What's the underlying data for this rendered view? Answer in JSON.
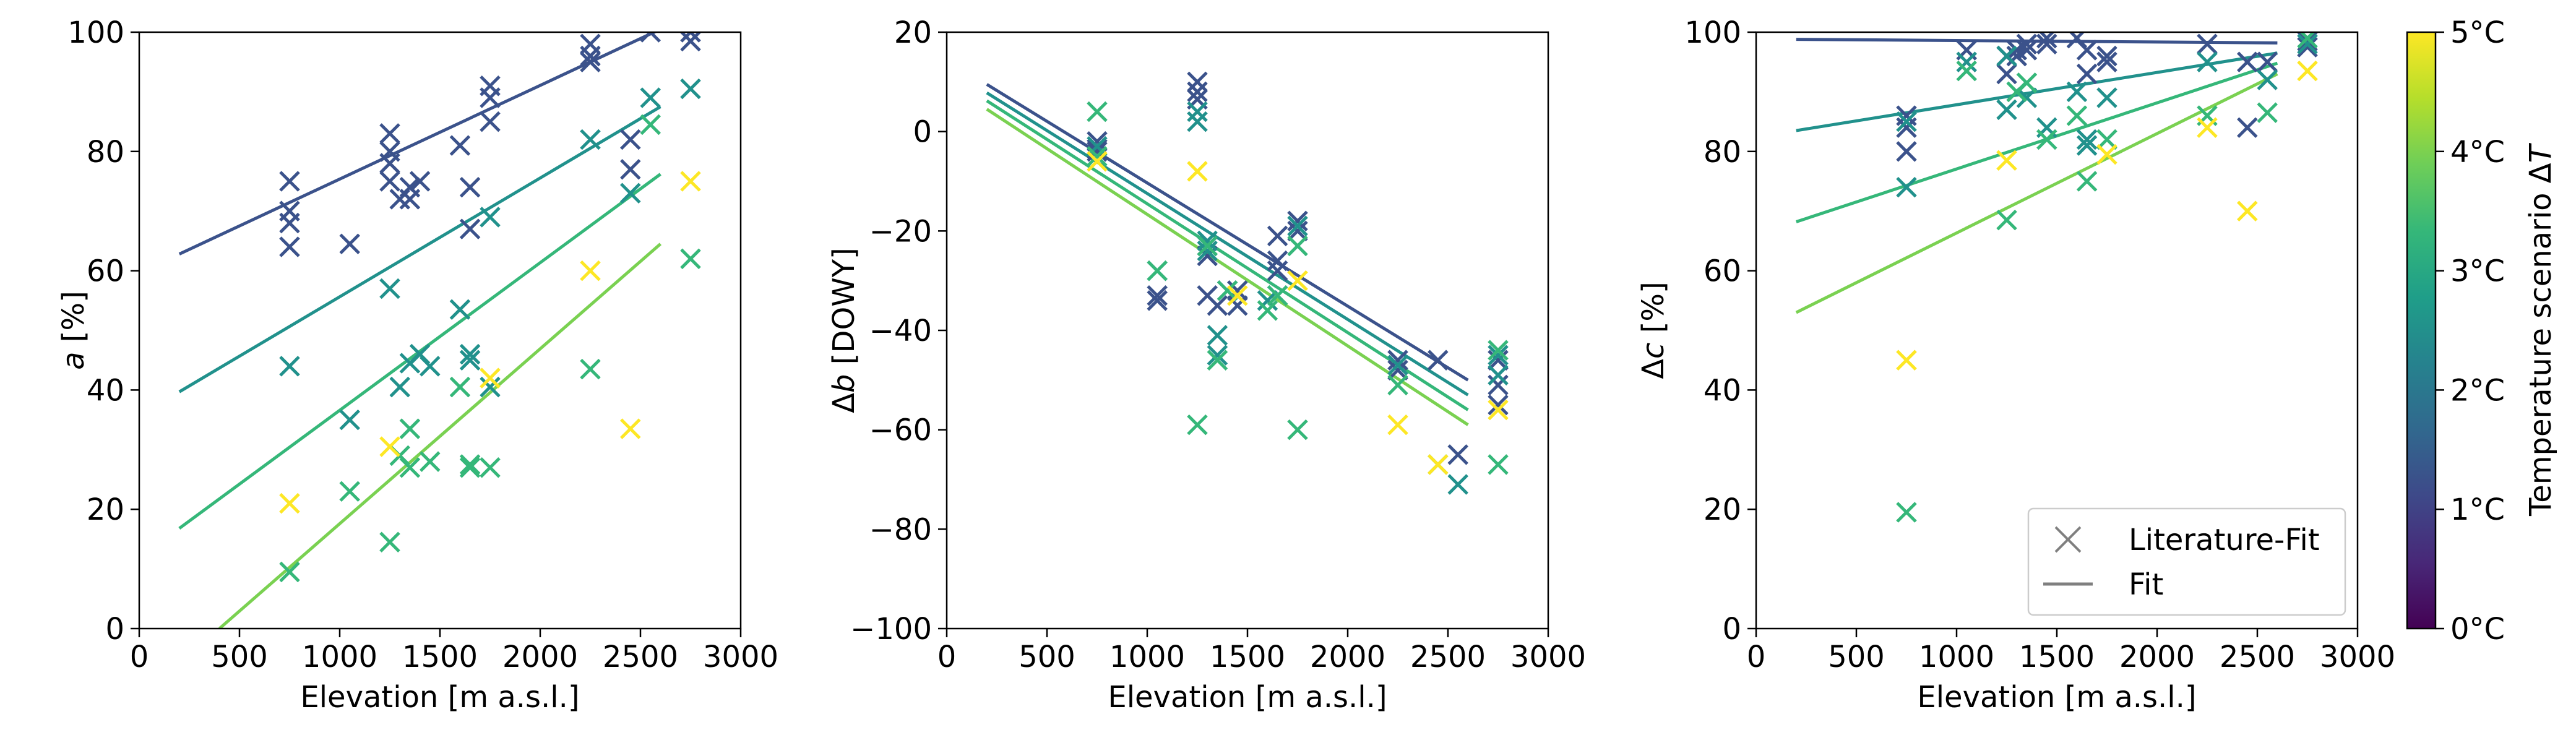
{
  "chart_data": [
    {
      "type": "scatter",
      "xlabel": "Elevation [m a.s.l.]",
      "ylabel": "a [%]",
      "ylabel_italic": "a",
      "ylabel_rest": " [%]",
      "xlim": [
        0,
        3000
      ],
      "ylim": [
        0,
        100
      ],
      "xticks": [
        0,
        500,
        1000,
        1500,
        2000,
        2500,
        3000
      ],
      "yticks": [
        0,
        20,
        40,
        60,
        80,
        100
      ],
      "grid": false,
      "series": [
        {
          "dT": 1,
          "color": "#3b528b",
          "fit": [
            [
              200,
              62.8
            ],
            [
              2600,
              100.5
            ]
          ],
          "points": [
            [
              750,
              75
            ],
            [
              750,
              70
            ],
            [
              750,
              68
            ],
            [
              750,
              64
            ],
            [
              1050,
              64.5
            ],
            [
              1250,
              83
            ],
            [
              1250,
              80
            ],
            [
              1250,
              78
            ],
            [
              1250,
              75
            ],
            [
              1300,
              72
            ],
            [
              1350,
              74
            ],
            [
              1350,
              72
            ],
            [
              1400,
              75
            ],
            [
              1600,
              81
            ],
            [
              1650,
              74
            ],
            [
              1650,
              67
            ],
            [
              1750,
              91
            ],
            [
              1750,
              89
            ],
            [
              1750,
              85
            ],
            [
              2250,
              98
            ],
            [
              2250,
              96
            ],
            [
              2250,
              95
            ],
            [
              2450,
              82
            ],
            [
              2450,
              77
            ],
            [
              2550,
              100
            ],
            [
              2750,
              100
            ],
            [
              2750,
              98.5
            ]
          ]
        },
        {
          "dT": 2,
          "color": "#21918c",
          "fit": [
            [
              200,
              39.7
            ],
            [
              2600,
              87.5
            ]
          ],
          "points": [
            [
              750,
              44
            ],
            [
              1050,
              35
            ],
            [
              1250,
              57
            ],
            [
              1300,
              40.5
            ],
            [
              1350,
              44.5
            ],
            [
              1400,
              46
            ],
            [
              1450,
              44
            ],
            [
              1600,
              53.5
            ],
            [
              1650,
              46
            ],
            [
              1650,
              45
            ],
            [
              1750,
              69
            ],
            [
              1750,
              40.5
            ],
            [
              2250,
              82
            ],
            [
              2450,
              73
            ],
            [
              2550,
              89
            ],
            [
              2750,
              90.5
            ]
          ]
        },
        {
          "dT": 3,
          "color": "#35b779",
          "fit": [
            [
              200,
              16.8
            ],
            [
              2600,
              76.2
            ]
          ],
          "points": [
            [
              750,
              9.5
            ],
            [
              1050,
              23
            ],
            [
              1250,
              14.5
            ],
            [
              1300,
              29
            ],
            [
              1350,
              33.5
            ],
            [
              1350,
              27
            ],
            [
              1450,
              28
            ],
            [
              1600,
              40.5
            ],
            [
              1650,
              27.5
            ],
            [
              1650,
              27
            ],
            [
              1750,
              27
            ],
            [
              2250,
              43.5
            ],
            [
              2550,
              84.5
            ],
            [
              2750,
              62
            ]
          ]
        },
        {
          "dT": 4,
          "color": "#7ad151",
          "fit": [
            [
              400,
              0
            ],
            [
              2600,
              64.5
            ]
          ],
          "points": []
        },
        {
          "dT": 5,
          "color": "#fde725",
          "fit": null,
          "points": [
            [
              750,
              21
            ],
            [
              1250,
              30.5
            ],
            [
              1750,
              42
            ],
            [
              2250,
              60
            ],
            [
              2450,
              33.5
            ],
            [
              2750,
              75
            ]
          ]
        }
      ]
    },
    {
      "type": "scatter",
      "xlabel": "Elevation [m a.s.l.]",
      "ylabel": "Δb [DOWY]",
      "ylabel_prefix": "Δ",
      "ylabel_italic": "b",
      "ylabel_rest": " [DOWY]",
      "xlim": [
        0,
        3000
      ],
      "ylim": [
        -100,
        20
      ],
      "xticks": [
        0,
        500,
        1000,
        1500,
        2000,
        2500,
        3000
      ],
      "yticks": [
        -100,
        -80,
        -60,
        -40,
        -20,
        0,
        20
      ],
      "grid": false,
      "series": [
        {
          "dT": 1,
          "color": "#3b528b",
          "fit": [
            [
              200,
              9.5
            ],
            [
              2600,
              -50
            ]
          ],
          "points": [
            [
              750,
              -2
            ],
            [
              750,
              -3.5
            ],
            [
              750,
              -4
            ],
            [
              1050,
              -33
            ],
            [
              1050,
              -34
            ],
            [
              1250,
              10
            ],
            [
              1250,
              8
            ],
            [
              1250,
              6.5
            ],
            [
              1300,
              -23
            ],
            [
              1300,
              -25
            ],
            [
              1300,
              -33
            ],
            [
              1350,
              -35
            ],
            [
              1400,
              -32
            ],
            [
              1450,
              -35
            ],
            [
              1450,
              -32
            ],
            [
              1650,
              -21
            ],
            [
              1650,
              -26
            ],
            [
              1650,
              -28
            ],
            [
              1750,
              -18
            ],
            [
              1750,
              -20
            ],
            [
              2250,
              -46
            ],
            [
              2250,
              -48
            ],
            [
              2450,
              -46
            ],
            [
              2550,
              -65
            ],
            [
              2750,
              -46
            ],
            [
              2750,
              -51
            ],
            [
              2750,
              -55
            ]
          ]
        },
        {
          "dT": 2,
          "color": "#21918c",
          "fit": [
            [
              200,
              7.8
            ],
            [
              2600,
              -53
            ]
          ],
          "points": [
            [
              750,
              -3
            ],
            [
              1050,
              -28
            ],
            [
              1250,
              4
            ],
            [
              1250,
              2
            ],
            [
              1300,
              -22
            ],
            [
              1300,
              -24
            ],
            [
              1350,
              -41
            ],
            [
              1350,
              -45
            ],
            [
              1600,
              -34
            ],
            [
              1650,
              -33
            ],
            [
              1750,
              -19
            ],
            [
              2250,
              -47
            ],
            [
              2550,
              -71
            ],
            [
              2750,
              -45
            ],
            [
              2750,
              -49
            ]
          ]
        },
        {
          "dT": 3,
          "color": "#35b779",
          "fit": [
            [
              200,
              6.2
            ],
            [
              2600,
              -56
            ]
          ],
          "points": [
            [
              750,
              4
            ],
            [
              750,
              -5
            ],
            [
              1050,
              -28
            ],
            [
              1250,
              -59
            ],
            [
              1300,
              -23
            ],
            [
              1350,
              -46
            ],
            [
              1400,
              -32
            ],
            [
              1600,
              -36
            ],
            [
              1650,
              -33
            ],
            [
              1750,
              -23
            ],
            [
              1750,
              -60
            ],
            [
              2250,
              -51
            ],
            [
              2450,
              -67
            ],
            [
              2750,
              -44
            ],
            [
              2750,
              -67
            ]
          ]
        },
        {
          "dT": 4,
          "color": "#7ad151",
          "fit": [
            [
              200,
              4.5
            ],
            [
              2600,
              -59
            ]
          ],
          "points": []
        },
        {
          "dT": 5,
          "color": "#fde725",
          "fit": null,
          "points": [
            [
              750,
              -6
            ],
            [
              1250,
              -8
            ],
            [
              1450,
              -33
            ],
            [
              1750,
              -30
            ],
            [
              2250,
              -59
            ],
            [
              2450,
              -67
            ],
            [
              2750,
              -56
            ]
          ]
        }
      ]
    },
    {
      "type": "scatter",
      "xlabel": "Elevation [m a.s.l.]",
      "ylabel": "Δc [%]",
      "ylabel_prefix": "Δ",
      "ylabel_italic": "c",
      "ylabel_rest": " [%]",
      "xlim": [
        0,
        3000
      ],
      "ylim": [
        0,
        100
      ],
      "xticks": [
        0,
        500,
        1000,
        1500,
        2000,
        2500,
        3000
      ],
      "yticks": [
        0,
        20,
        40,
        60,
        80,
        100
      ],
      "grid": false,
      "legend": {
        "placement": "lower right",
        "entries": [
          "Literature-Fit",
          "Fit"
        ]
      },
      "series": [
        {
          "dT": 1,
          "color": "#3b528b",
          "fit": [
            [
              200,
              98.8
            ],
            [
              2600,
              98.2
            ]
          ],
          "points": [
            [
              750,
              86
            ],
            [
              750,
              84
            ],
            [
              750,
              80
            ],
            [
              1050,
              97
            ],
            [
              1250,
              96
            ],
            [
              1250,
              93
            ],
            [
              1300,
              97
            ],
            [
              1300,
              96
            ],
            [
              1350,
              98
            ],
            [
              1350,
              97
            ],
            [
              1450,
              98
            ],
            [
              1450,
              99
            ],
            [
              1600,
              99
            ],
            [
              1650,
              97
            ],
            [
              1650,
              93
            ],
            [
              1750,
              96
            ],
            [
              1750,
              95
            ],
            [
              2250,
              98
            ],
            [
              2450,
              95
            ],
            [
              2450,
              84
            ],
            [
              2550,
              95
            ],
            [
              2750,
              98.5
            ],
            [
              2750,
              97.5
            ]
          ]
        },
        {
          "dT": 2,
          "color": "#21918c",
          "fit": [
            [
              200,
              83.5
            ],
            [
              2600,
              96.5
            ]
          ],
          "points": [
            [
              750,
              85
            ],
            [
              750,
              74
            ],
            [
              1050,
              95
            ],
            [
              1250,
              96
            ],
            [
              1250,
              87
            ],
            [
              1300,
              90
            ],
            [
              1350,
              89
            ],
            [
              1450,
              84
            ],
            [
              1600,
              90
            ],
            [
              1650,
              82
            ],
            [
              1650,
              81
            ],
            [
              1750,
              89
            ],
            [
              2250,
              95
            ],
            [
              2550,
              92
            ],
            [
              2750,
              98
            ]
          ]
        },
        {
          "dT": 3,
          "color": "#35b779",
          "fit": [
            [
              200,
              68.2
            ],
            [
              2600,
              94.8
            ]
          ],
          "points": [
            [
              750,
              19.5
            ],
            [
              1050,
              93.5
            ],
            [
              1250,
              68.5
            ],
            [
              1300,
              90
            ],
            [
              1350,
              91.5
            ],
            [
              1450,
              82
            ],
            [
              1600,
              86
            ],
            [
              1650,
              75
            ],
            [
              1750,
              82
            ],
            [
              2250,
              86
            ],
            [
              2550,
              86.5
            ],
            [
              2750,
              99
            ]
          ]
        },
        {
          "dT": 4,
          "color": "#7ad151",
          "fit": [
            [
              200,
              53
            ],
            [
              2600,
              93
            ]
          ],
          "points": []
        },
        {
          "dT": 5,
          "color": "#fde725",
          "fit": null,
          "points": [
            [
              750,
              45
            ],
            [
              1250,
              78.5
            ],
            [
              1750,
              79.5
            ],
            [
              2250,
              84
            ],
            [
              2450,
              70
            ],
            [
              2750,
              93.5
            ]
          ]
        }
      ]
    }
  ],
  "colorbar": {
    "label": "Temperature scenario ΔT",
    "label_prefix": "Temperature scenario Δ",
    "label_italic": "T",
    "ticks": [
      "0°C",
      "1°C",
      "2°C",
      "3°C",
      "4°C",
      "5°C"
    ],
    "range": [
      0,
      5
    ],
    "colormap": "viridis",
    "stops": [
      "#440154",
      "#482878",
      "#3e4989",
      "#31688e",
      "#26828e",
      "#1f9e89",
      "#35b779",
      "#6ece58",
      "#b5de2b",
      "#fde725"
    ]
  },
  "legend_marker_color": "#7f7f7f",
  "axis_color": "#000000"
}
